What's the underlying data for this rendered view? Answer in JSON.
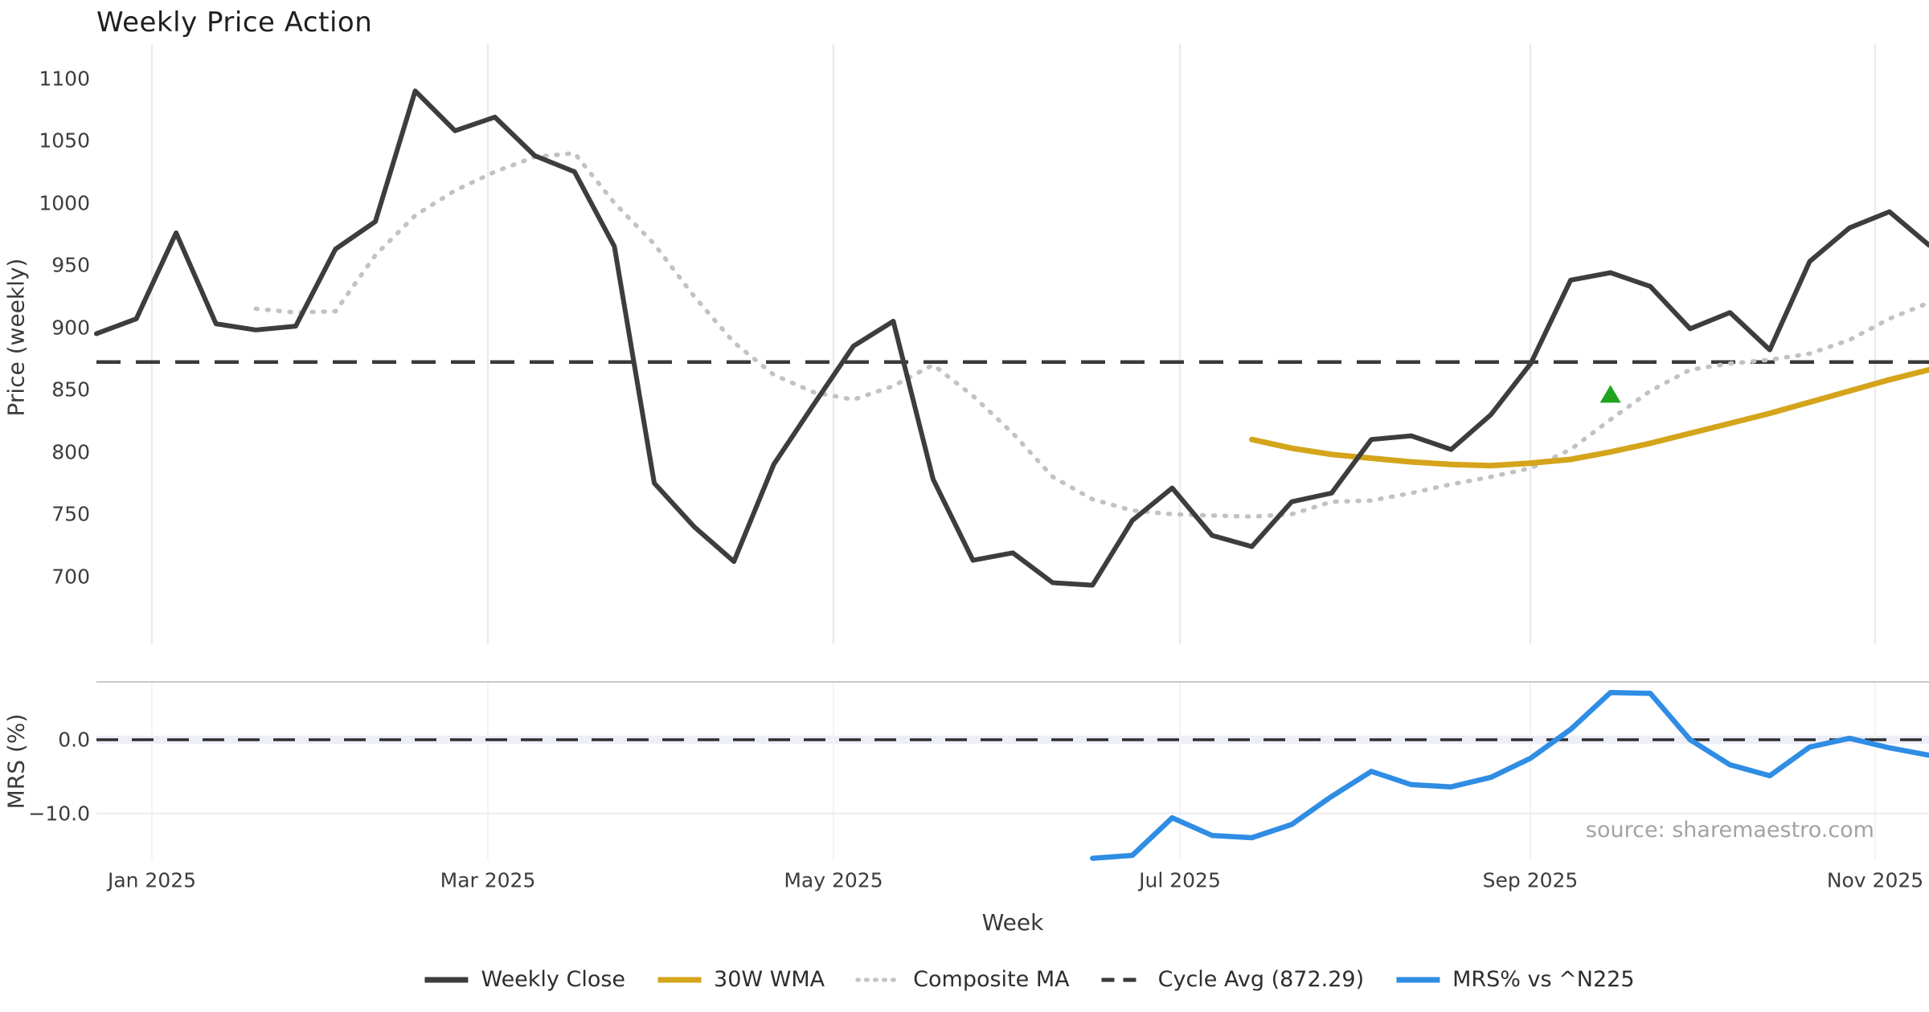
{
  "chart_data": {
    "type": "line",
    "title": "Weekly Price Action",
    "xlabel": "Week",
    "source": "source: sharemaestro.com",
    "x_tick_labels": [
      "Jan 2025",
      "Mar 2025",
      "May 2025",
      "Jul 2025",
      "Sep 2025",
      "Nov 2025"
    ],
    "panels": [
      {
        "ylabel": "Price (weekly)",
        "y_ticks": [
          "1100",
          "1050",
          "1000",
          "950",
          "900",
          "850",
          "800",
          "750",
          "700"
        ],
        "series": [
          {
            "name": "Weekly Close",
            "color": "#3d3d3d",
            "style": "solid",
            "start_week": 0,
            "values": [
              895,
              907,
              976,
              903,
              898,
              901,
              963,
              985,
              1090,
              1058,
              1069,
              1038,
              1025,
              965,
              775,
              740,
              712,
              790,
              838,
              885,
              905,
              778,
              713,
              719,
              695,
              693,
              745,
              771,
              733,
              724,
              760,
              767,
              810,
              813,
              802,
              830,
              871,
              938,
              944,
              933,
              899,
              912,
              882,
              953,
              980,
              993,
              966
            ]
          },
          {
            "name": "30W WMA",
            "color": "#d4a41b",
            "style": "solid",
            "start_week": 29,
            "values": [
              810,
              803,
              798,
              795,
              792,
              790,
              789,
              791,
              794,
              800,
              807,
              815,
              823,
              831,
              840,
              849,
              858,
              866
            ]
          },
          {
            "name": "Composite MA",
            "color": "#c2c2c2",
            "style": "dotted",
            "start_week": 4,
            "values": [
              915,
              912,
              913,
              958,
              990,
              1010,
              1025,
              1037,
              1040,
              1000,
              967,
              925,
              888,
              862,
              848,
              842,
              853,
              870,
              845,
              815,
              780,
              762,
              753,
              750,
              749,
              748,
              750,
              760,
              761,
              767,
              774,
              780,
              787,
              802,
              826,
              849,
              866,
              871,
              874,
              879,
              890,
              907,
              920
            ]
          },
          {
            "name": "Cycle Avg",
            "color": "#3a3a3a",
            "style": "dashed",
            "value": 872.29
          }
        ],
        "marker": {
          "shape": "triangle-up",
          "color": "#21a321",
          "week": 38,
          "value": 846
        }
      },
      {
        "ylabel": "MRS (%)",
        "y_ticks": [
          "0.0",
          "−10.0"
        ],
        "series": [
          {
            "name": "MRS% vs ^N225",
            "color": "#2f8de4",
            "style": "solid",
            "start_week": 25,
            "values": [
              -16.1,
              -15.7,
              -10.6,
              -13.0,
              -13.3,
              -11.5,
              -7.7,
              -4.3,
              -6.1,
              -6.4,
              -5.1,
              -2.5,
              1.4,
              6.4,
              6.3,
              0.0,
              -3.4,
              -4.9,
              -1.0,
              0.2,
              -1.1,
              -2.1
            ]
          },
          {
            "name": "Zero Line",
            "color": "#2f2f2f",
            "style": "dashed",
            "value": 0
          }
        ]
      }
    ],
    "legend": [
      {
        "label": "Weekly Close",
        "color": "#3d3d3d",
        "style": "solid"
      },
      {
        "label": "30W WMA",
        "color": "#d4a41b",
        "style": "solid"
      },
      {
        "label": "Composite MA",
        "color": "#c2c2c2",
        "style": "dotted"
      },
      {
        "label": "Cycle Avg (872.29)",
        "color": "#3a3a3a",
        "style": "dashed"
      },
      {
        "label": "MRS% vs ^N225",
        "color": "#2f8de4",
        "style": "solid"
      }
    ]
  }
}
